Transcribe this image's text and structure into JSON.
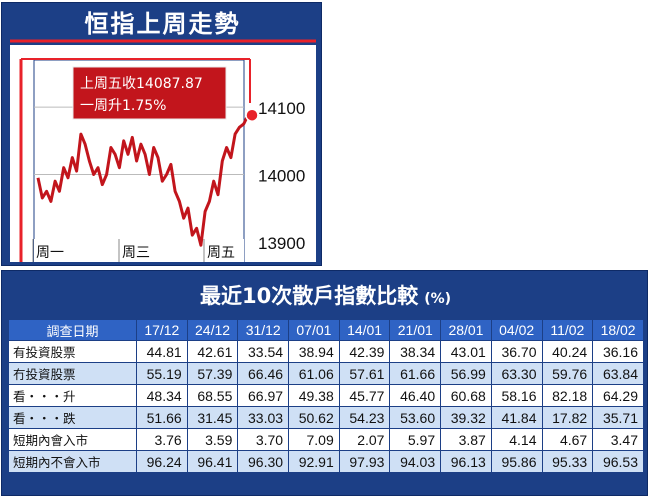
{
  "chart_data": [
    {
      "type": "line",
      "title": "恒指上周走勢",
      "x_labels": [
        "周一",
        "周三",
        "周五"
      ],
      "y_ticks": [
        14100,
        14000,
        13900
      ],
      "ylim": [
        13870,
        14170
      ],
      "grid": true,
      "series": [
        {
          "values": [
            13995,
            13965,
            13975,
            13960,
            13990,
            13975,
            14010,
            13995,
            14025,
            14005,
            14060,
            14045,
            14020,
            14000,
            14010,
            13985,
            14000,
            14040,
            14030,
            14010,
            14050,
            14030,
            14055,
            14020,
            14045,
            14030,
            14000,
            14040,
            14025,
            13990,
            14000,
            14015,
            13975,
            13960,
            13935,
            13950,
            13910,
            13920,
            13895,
            13945,
            13960,
            13990,
            13970,
            14020,
            14040,
            14025,
            14060,
            14070,
            14075,
            14088
          ]
        }
      ],
      "annotation": {
        "line1": "上周五收14087.87",
        "line2": "一周升1.75%"
      }
    },
    {
      "type": "table",
      "title": "最近10次散戶指數比較",
      "unit": "(%)",
      "header_label": "調查日期",
      "columns": [
        "17/12",
        "24/12",
        "31/12",
        "07/01",
        "14/01",
        "21/01",
        "28/01",
        "04/02",
        "11/02",
        "18/02"
      ],
      "rows": [
        {
          "label": "有投資股票",
          "values": [
            "44.81",
            "42.61",
            "33.54",
            "38.94",
            "42.39",
            "38.34",
            "43.01",
            "36.70",
            "40.24",
            "36.16"
          ]
        },
        {
          "label": "冇投資股票",
          "values": [
            "55.19",
            "57.39",
            "66.46",
            "61.06",
            "57.61",
            "61.66",
            "56.99",
            "63.30",
            "59.76",
            "63.84"
          ]
        },
        {
          "label": "看・・・升",
          "values": [
            "48.34",
            "68.55",
            "66.97",
            "49.38",
            "45.77",
            "46.40",
            "60.68",
            "58.16",
            "82.18",
            "64.29"
          ]
        },
        {
          "label": "看・・・跌",
          "values": [
            "51.66",
            "31.45",
            "33.03",
            "50.62",
            "54.23",
            "53.60",
            "39.32",
            "41.84",
            "17.82",
            "35.71"
          ]
        },
        {
          "label": "短期內會入市",
          "values": [
            "3.76",
            "3.59",
            "3.70",
            "7.09",
            "2.07",
            "5.97",
            "3.87",
            "4.14",
            "4.67",
            "3.47"
          ]
        },
        {
          "label": "短期內不會入市",
          "values": [
            "96.24",
            "96.41",
            "96.30",
            "92.91",
            "97.93",
            "94.03",
            "96.13",
            "95.86",
            "95.33",
            "96.53"
          ]
        }
      ]
    }
  ],
  "colors": {
    "panel": "#1c3f86",
    "plot_bg": "#ffffff",
    "line": "#c2151c",
    "accent": "#e8222a",
    "annotation_bg": "#c2151c",
    "grid": "#bbbbbb",
    "header_cell": "#2f63c4",
    "row_even": "#cfe0f5"
  }
}
